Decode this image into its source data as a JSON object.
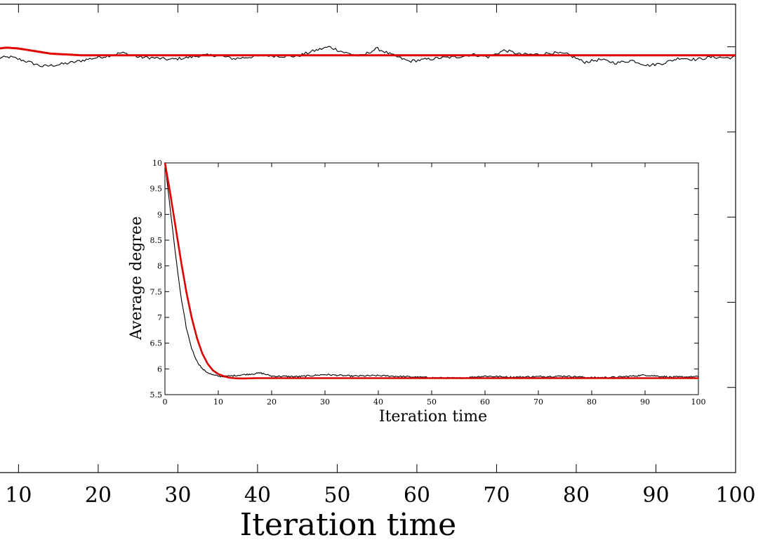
{
  "chart_data": [
    {
      "type": "line",
      "title": "",
      "xlabel": "Iteration time",
      "ylabel": "",
      "xlim": [
        7.5,
        100
      ],
      "ylim": [
        5.5,
        6.05
      ],
      "x_ticks": [
        10,
        20,
        30,
        40,
        50,
        60,
        70,
        80,
        90,
        100
      ],
      "y_ticks": [
        5.5,
        5.6,
        5.7,
        5.8,
        5.9,
        6.0
      ],
      "show_y_tick_labels": false,
      "grid": false,
      "series": [
        {
          "color": "#000000",
          "style": "noisy",
          "x": [
            7.5,
            9,
            11,
            13,
            15,
            17,
            19,
            21,
            23,
            25,
            27,
            29,
            31,
            33,
            35,
            37,
            39,
            41,
            43,
            45,
            47,
            49,
            51,
            53,
            55,
            57,
            59,
            61,
            63,
            65,
            67,
            69,
            71,
            73,
            75,
            77,
            79,
            81,
            83,
            85,
            87,
            89,
            91,
            93,
            95,
            97,
            99,
            100
          ],
          "y": [
            5.987,
            5.988,
            5.983,
            5.977,
            5.979,
            5.982,
            5.986,
            5.989,
            5.993,
            5.988,
            5.987,
            5.985,
            5.987,
            5.99,
            5.99,
            5.986,
            5.988,
            5.99,
            5.989,
            5.989,
            5.995,
            6.0,
            5.993,
            5.989,
            5.998,
            5.99,
            5.983,
            5.985,
            5.987,
            5.988,
            5.991,
            5.988,
            5.996,
            5.991,
            5.991,
            5.993,
            5.991,
            5.982,
            5.985,
            5.981,
            5.984,
            5.978,
            5.981,
            5.987,
            5.985,
            5.988,
            5.987,
            5.988
          ]
        },
        {
          "color": "#e00000",
          "style": "smooth",
          "x": [
            7.5,
            8.5,
            10,
            12,
            14,
            16,
            18,
            20,
            25,
            30,
            40,
            50,
            60,
            70,
            80,
            90,
            100
          ],
          "y": [
            5.998,
            5.999,
            5.998,
            5.995,
            5.992,
            5.991,
            5.99,
            5.99,
            5.99,
            5.99,
            5.99,
            5.99,
            5.99,
            5.99,
            5.99,
            5.99,
            5.99
          ]
        }
      ]
    },
    {
      "type": "line",
      "title": "",
      "xlabel": "Iteration time",
      "ylabel": "Average degree",
      "xlim": [
        0,
        100
      ],
      "ylim": [
        5.5,
        10
      ],
      "x_ticks": [
        0,
        10,
        20,
        30,
        40,
        50,
        60,
        70,
        80,
        90,
        100
      ],
      "y_ticks": [
        5.5,
        6,
        6.5,
        7,
        7.5,
        8,
        8.5,
        9,
        9.5,
        10
      ],
      "y_tick_labels": [
        "5.5",
        "6",
        "6.5",
        "7",
        "7.5",
        "8",
        "8.5",
        "9",
        "9.5",
        "10"
      ],
      "grid": false,
      "series": [
        {
          "color": "#000000",
          "style": "noisy",
          "x": [
            0,
            1,
            2,
            3,
            4,
            5,
            6,
            7,
            8,
            9,
            10,
            11,
            12,
            14,
            16,
            18,
            20,
            25,
            30,
            35,
            40,
            45,
            50,
            55,
            60,
            65,
            70,
            75,
            80,
            85,
            90,
            95,
            100
          ],
          "y": [
            10,
            9.1,
            8.2,
            7.4,
            6.8,
            6.4,
            6.15,
            6.0,
            5.93,
            5.88,
            5.86,
            5.85,
            5.86,
            5.88,
            5.9,
            5.92,
            5.86,
            5.85,
            5.89,
            5.86,
            5.87,
            5.85,
            5.83,
            5.82,
            5.86,
            5.84,
            5.85,
            5.86,
            5.83,
            5.84,
            5.88,
            5.84,
            5.85
          ]
        },
        {
          "color": "#e00000",
          "style": "smooth",
          "x": [
            0,
            1,
            2,
            3,
            4,
            5,
            6,
            7,
            8,
            9,
            10,
            11,
            12,
            13,
            14,
            15,
            17,
            20,
            30,
            40,
            50,
            60,
            70,
            80,
            90,
            100
          ],
          "y": [
            10,
            9.4,
            8.75,
            8.1,
            7.5,
            7.0,
            6.6,
            6.3,
            6.1,
            5.97,
            5.9,
            5.86,
            5.83,
            5.82,
            5.815,
            5.815,
            5.82,
            5.82,
            5.82,
            5.82,
            5.82,
            5.82,
            5.82,
            5.82,
            5.82,
            5.82
          ]
        }
      ]
    }
  ]
}
